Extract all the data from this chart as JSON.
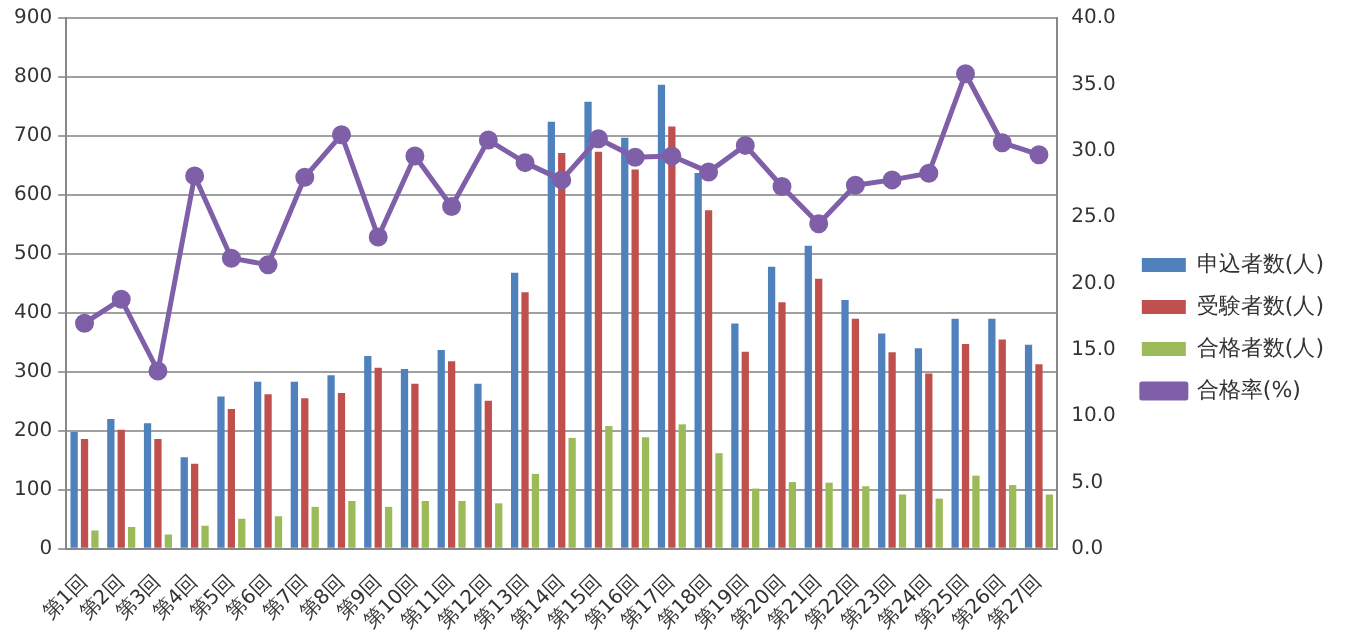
{
  "chart_data": {
    "type": "bar",
    "categories": [
      "第1回",
      "第2回",
      "第3回",
      "第4回",
      "第5回",
      "第6回",
      "第7回",
      "第8回",
      "第9回",
      "第10回",
      "第11回",
      "第12回",
      "第13回",
      "第14回",
      "第15回",
      "第16回",
      "第17回",
      "第18回",
      "第19回",
      "第20回",
      "第21回",
      "第22回",
      "第23回",
      "第24回",
      "第25回",
      "第26回",
      "第27回"
    ],
    "series": [
      {
        "name": "申込者数(人)",
        "color": "#4f81bd",
        "values": [
          198,
          220,
          213,
          155,
          258,
          283,
          283,
          294,
          327,
          305,
          337,
          280,
          468,
          724,
          758,
          697,
          787,
          637,
          382,
          478,
          514,
          422,
          365,
          340,
          390,
          390,
          346
        ]
      },
      {
        "name": "受験者数(人)",
        "color": "#c0504d",
        "values": [
          186,
          202,
          186,
          144,
          237,
          262,
          255,
          264,
          307,
          280,
          318,
          251,
          435,
          671,
          673,
          643,
          716,
          574,
          334,
          418,
          458,
          390,
          333,
          297,
          347,
          355,
          313
        ]
      },
      {
        "name": "合格者数(人)",
        "color": "#9bbb59",
        "values": [
          31,
          37,
          24,
          39,
          51,
          55,
          71,
          81,
          71,
          81,
          81,
          77,
          127,
          188,
          208,
          189,
          211,
          162,
          102,
          113,
          112,
          106,
          92,
          85,
          124,
          108,
          92
        ]
      },
      {
        "name": "合格率(%)",
        "type": "line",
        "axis": "y2",
        "marker": "circle",
        "color": "#7f5fa7",
        "values": [
          17.0,
          18.8,
          13.4,
          28.1,
          21.9,
          21.4,
          28.0,
          31.2,
          23.5,
          29.6,
          25.8,
          30.8,
          29.1,
          27.8,
          30.9,
          29.5,
          29.6,
          28.4,
          30.4,
          27.3,
          24.5,
          27.4,
          27.8,
          28.3,
          35.8,
          30.6,
          29.7
        ]
      }
    ],
    "ylim": [
      0,
      900
    ],
    "yticks": [
      0,
      100,
      200,
      300,
      400,
      500,
      600,
      700,
      800,
      900
    ],
    "y2lim": [
      0,
      40
    ],
    "y2ticks": [
      {
        "value": 0,
        "label": "0.0"
      },
      {
        "value": 5,
        "label": "5.0"
      },
      {
        "value": 10,
        "label": "10.0"
      },
      {
        "value": 15,
        "label": "15.0"
      },
      {
        "value": 20,
        "label": "20.0"
      },
      {
        "value": 25,
        "label": "25.0"
      },
      {
        "value": 30,
        "label": "30.0"
      },
      {
        "value": 35,
        "label": "35.0"
      },
      {
        "value": 40,
        "label": "40.0"
      }
    ],
    "grid": "y",
    "legend": "right"
  }
}
